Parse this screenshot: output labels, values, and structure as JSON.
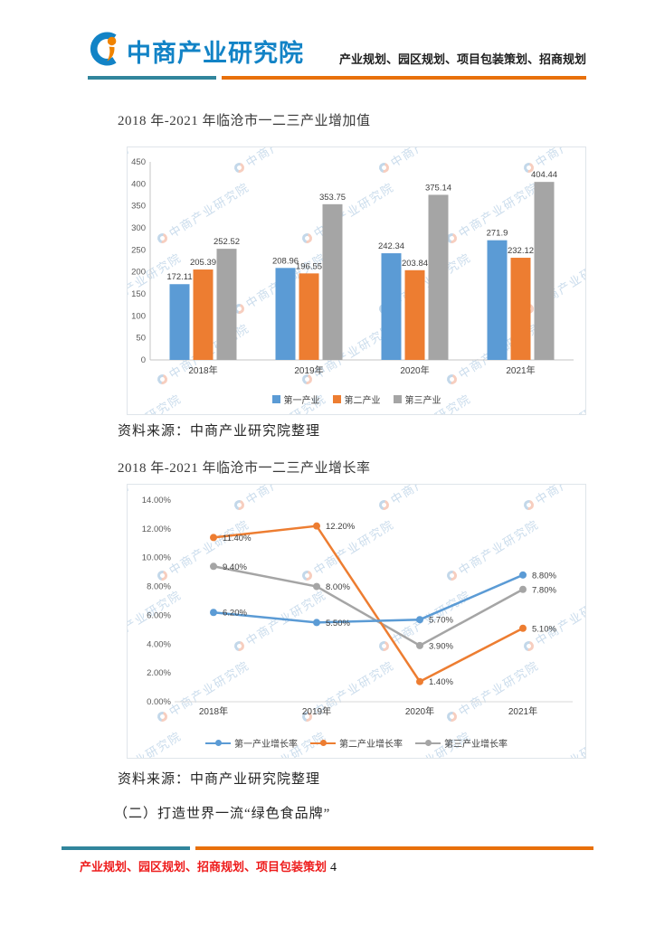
{
  "header": {
    "logo_text": "中商产业研究院",
    "tagline": "产业规划、园区规划、项目包装策划、招商规划"
  },
  "sections": {
    "chart1_title": "2018 年-2021 年临沧市一二三产业增加值",
    "chart1_source": "资料来源：中商产业研究院整理",
    "chart2_title": "2018 年-2021 年临沧市一二三产业增长率",
    "chart2_source": "资料来源：中商产业研究院整理",
    "subheading": "（二）打造世界一流“绿色食品牌”"
  },
  "footer": {
    "text": "产业规划、园区规划、招商规划、项目包装策划",
    "page_number": "4"
  },
  "watermark": {
    "text": "中商产业研究院"
  },
  "colors": {
    "series_blue": "#5B9BD5",
    "series_orange": "#ED7D31",
    "series_gray": "#A5A5A5",
    "divider_teal": "#31859C",
    "divider_orange": "#E8700A",
    "footer_red": "#EE1C1C",
    "logo_blue": "#1283C6",
    "logo_orange": "#F08300"
  },
  "chart_data": [
    {
      "type": "bar",
      "title": "2018年-2021年临沧市一二三产业增加值",
      "categories": [
        "2018年",
        "2019年",
        "2020年",
        "2021年"
      ],
      "series": [
        {
          "name": "第一产业",
          "color": "#5B9BD5",
          "values": [
            172.11,
            208.96,
            242.34,
            271.9
          ]
        },
        {
          "name": "第二产业",
          "color": "#ED7D31",
          "values": [
            205.39,
            196.55,
            203.84,
            232.12
          ]
        },
        {
          "name": "第三产业",
          "color": "#A5A5A5",
          "values": [
            252.52,
            353.75,
            375.14,
            404.44
          ]
        }
      ],
      "ylim": [
        0,
        450
      ],
      "ytick_step": 50,
      "xlabel": "",
      "ylabel": "",
      "grid": false,
      "legend_position": "bottom"
    },
    {
      "type": "line",
      "title": "2018年-2021年临沧市一二三产业增长率",
      "categories": [
        "2018年",
        "2019年",
        "2020年",
        "2021年"
      ],
      "series": [
        {
          "name": "第一产业增长率",
          "color": "#5B9BD5",
          "values": [
            6.2,
            5.5,
            5.7,
            8.8
          ]
        },
        {
          "name": "第二产业增长率",
          "color": "#ED7D31",
          "values": [
            11.4,
            12.2,
            1.4,
            5.1
          ]
        },
        {
          "name": "第三产业增长率",
          "color": "#A5A5A5",
          "values": [
            9.4,
            8.0,
            3.9,
            7.8
          ]
        }
      ],
      "ylim": [
        0,
        14
      ],
      "ytick_step": 2,
      "value_suffix": "%",
      "xlabel": "",
      "ylabel": "",
      "grid": false,
      "legend_position": "bottom"
    }
  ]
}
